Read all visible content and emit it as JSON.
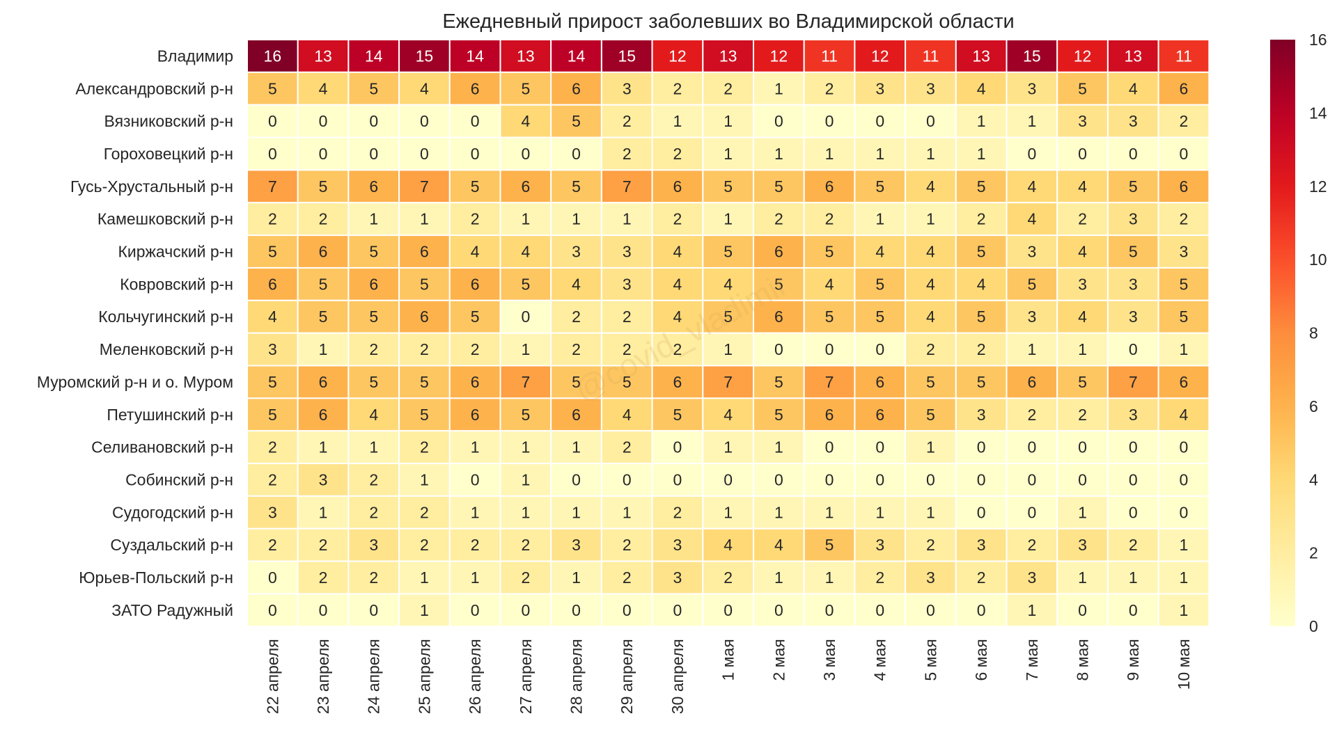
{
  "chart_data": {
    "type": "heatmap",
    "title": "Ежедневный прирост заболевших во Владимирской области",
    "watermark": "@covid_vladimir",
    "rows": [
      "Владимир",
      "Александровский р-н",
      "Вязниковский р-н",
      "Гороховецкий р-н",
      "Гусь-Хрустальный р-н",
      "Камешковский р-н",
      "Киржачский р-н",
      "Ковровский р-н",
      "Кольчугинский р-н",
      "Меленковский р-н",
      "Муромский р-н и о. Муром",
      "Петушинский р-н",
      "Селивановский р-н",
      "Собинский р-н",
      "Судогодский р-н",
      "Суздальский р-н",
      "Юрьев-Польский р-н",
      "ЗАТО Радужный"
    ],
    "columns": [
      "22 апреля",
      "23 апреля",
      "24 апреля",
      "25 апреля",
      "26 апреля",
      "27 апреля",
      "28 апреля",
      "29 апреля",
      "30 апреля",
      "1 мая",
      "2 мая",
      "3 мая",
      "4 мая",
      "5 мая",
      "6 мая",
      "7 мая",
      "8 мая",
      "9 мая",
      "10 мая"
    ],
    "values": [
      [
        16,
        13,
        14,
        15,
        14,
        13,
        14,
        15,
        12,
        13,
        12,
        11,
        12,
        11,
        13,
        15,
        12,
        13,
        11
      ],
      [
        5,
        4,
        5,
        4,
        6,
        5,
        6,
        3,
        2,
        2,
        1,
        2,
        3,
        3,
        4,
        3,
        5,
        4,
        6
      ],
      [
        0,
        0,
        0,
        0,
        0,
        4,
        5,
        2,
        1,
        1,
        0,
        0,
        0,
        0,
        1,
        1,
        3,
        3,
        2
      ],
      [
        0,
        0,
        0,
        0,
        0,
        0,
        0,
        2,
        2,
        1,
        1,
        1,
        1,
        1,
        1,
        0,
        0,
        0,
        0
      ],
      [
        7,
        5,
        6,
        7,
        5,
        6,
        5,
        7,
        6,
        5,
        5,
        6,
        5,
        4,
        5,
        4,
        4,
        5,
        6
      ],
      [
        2,
        2,
        1,
        1,
        2,
        1,
        1,
        1,
        2,
        1,
        2,
        2,
        1,
        1,
        2,
        4,
        2,
        3,
        2
      ],
      [
        5,
        6,
        5,
        6,
        4,
        4,
        3,
        3,
        4,
        5,
        6,
        5,
        4,
        4,
        5,
        3,
        4,
        5,
        3
      ],
      [
        6,
        5,
        6,
        5,
        6,
        5,
        4,
        3,
        4,
        4,
        5,
        4,
        5,
        4,
        4,
        5,
        3,
        3,
        5
      ],
      [
        4,
        5,
        5,
        6,
        5,
        0,
        2,
        2,
        4,
        5,
        6,
        5,
        5,
        4,
        5,
        3,
        4,
        3,
        5
      ],
      [
        3,
        1,
        2,
        2,
        2,
        1,
        2,
        2,
        2,
        1,
        0,
        0,
        0,
        2,
        2,
        1,
        1,
        0,
        1
      ],
      [
        5,
        6,
        5,
        5,
        6,
        7,
        5,
        5,
        6,
        7,
        5,
        7,
        6,
        5,
        5,
        6,
        5,
        7,
        6
      ],
      [
        5,
        6,
        4,
        5,
        6,
        5,
        6,
        4,
        5,
        4,
        5,
        6,
        6,
        5,
        3,
        2,
        2,
        3,
        4
      ],
      [
        2,
        1,
        1,
        2,
        1,
        1,
        1,
        2,
        0,
        1,
        1,
        0,
        0,
        1,
        0,
        0,
        0,
        0,
        0
      ],
      [
        2,
        3,
        2,
        1,
        0,
        1,
        0,
        0,
        0,
        0,
        0,
        0,
        0,
        0,
        0,
        0,
        0,
        0,
        0
      ],
      [
        3,
        1,
        2,
        2,
        1,
        1,
        1,
        1,
        2,
        1,
        1,
        1,
        1,
        1,
        0,
        0,
        1,
        0,
        0
      ],
      [
        2,
        2,
        3,
        2,
        2,
        2,
        3,
        2,
        3,
        4,
        4,
        5,
        3,
        2,
        3,
        2,
        3,
        2,
        1
      ],
      [
        0,
        2,
        2,
        1,
        1,
        2,
        1,
        2,
        3,
        2,
        1,
        1,
        2,
        3,
        2,
        3,
        1,
        1,
        1
      ],
      [
        0,
        0,
        0,
        1,
        0,
        0,
        0,
        0,
        0,
        0,
        0,
        0,
        0,
        0,
        0,
        1,
        0,
        0,
        1
      ]
    ],
    "vmin": 0,
    "vmax": 16,
    "colormap": "YlOrRd",
    "colorbar_ticks": [
      0,
      2,
      4,
      6,
      8,
      10,
      12,
      14,
      16
    ],
    "annotations": true,
    "grid": false,
    "cell_border_color": "#ffffff",
    "text_color_dark": "#262626",
    "text_color_light": "#ffffff"
  }
}
